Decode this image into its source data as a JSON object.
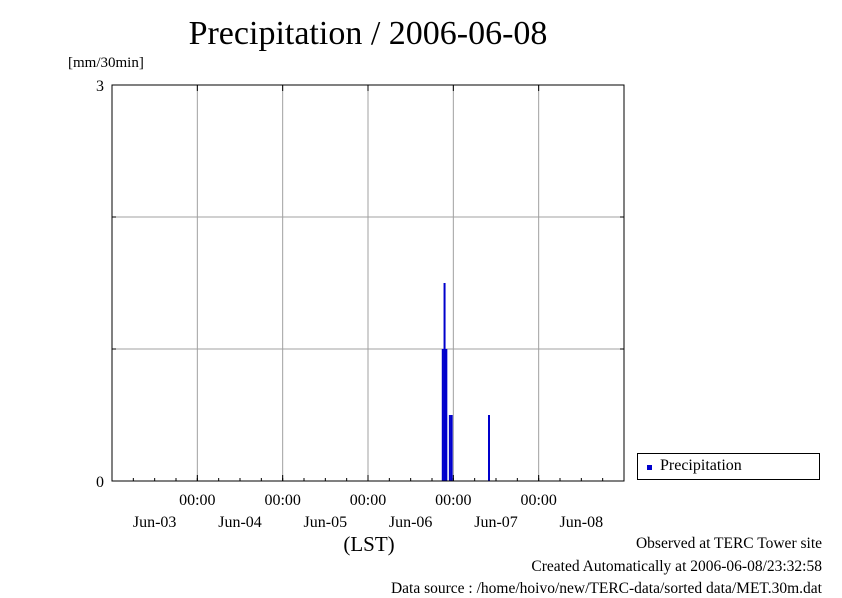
{
  "title": "Precipitation / 2006-06-08",
  "unit": "[mm/30min]",
  "footer": {
    "line1": "Observed at TERC Tower site",
    "line2": "Created Automatically at 2006-06-08/23:32:58",
    "line3": "Data source : /home/hoivo/new/TERC-data/sorted  data/MET.30m.dat"
  },
  "chart_data": {
    "type": "bar",
    "title": "Precipitation / 2006-06-08",
    "xlabel": "(LST)",
    "ylabel": "[mm/30min]",
    "ylim": [
      0,
      3
    ],
    "y_ticks": [
      0,
      3
    ],
    "y_gridlines": [
      1,
      2
    ],
    "x_ticks": [
      {
        "time": "2006-06-04 00:00",
        "label_top": "00:00",
        "label_bottom": "Jun-03"
      },
      {
        "time": "2006-06-05 00:00",
        "label_top": "00:00",
        "label_bottom": "Jun-04"
      },
      {
        "time": "2006-06-06 00:00",
        "label_top": "00:00",
        "label_bottom": "Jun-05"
      },
      {
        "time": "2006-06-07 00:00",
        "label_top": "00:00",
        "label_bottom": "Jun-06"
      },
      {
        "time": "2006-06-08 00:00",
        "label_top": "00:00",
        "label_bottom": "Jun-07"
      },
      {
        "time": "",
        "label_top": "",
        "label_bottom": "Jun-08"
      }
    ],
    "xlim": [
      "2006-06-03 00:00",
      "2006-06-09 00:00"
    ],
    "grid": true,
    "legend_position": "right",
    "series": [
      {
        "name": "Precipitation",
        "color": "#0000cc",
        "points": [
          {
            "time": "2006-06-06 21:00",
            "value": 1
          },
          {
            "time": "2006-06-06 21:30",
            "value": 1.5
          },
          {
            "time": "2006-06-06 22:00",
            "value": 1
          },
          {
            "time": "2006-06-06 23:00",
            "value": 0.5
          },
          {
            "time": "2006-06-06 23:30",
            "value": 0.5
          },
          {
            "time": "2006-06-07 10:00",
            "value": 0.5
          }
        ]
      }
    ]
  }
}
